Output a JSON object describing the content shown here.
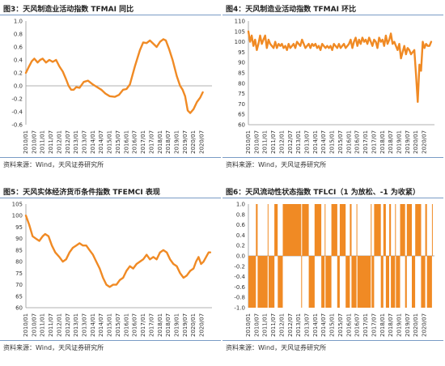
{
  "panels": [
    {
      "title": "图3：天风制造业活动指数 TFMAI 同比",
      "source": "资料来源：Wind，天风证券研究所"
    },
    {
      "title": "图4：天风制造业活动指数 TFMAI 环比",
      "source": "资料来源：Wind，天风证券研究所"
    },
    {
      "title": "图5：天风实体经济货币条件指数 TFEMCI 表现",
      "source": "资料来源：Wind，天风证券研究所"
    },
    {
      "title": "图6：天风流动性状态指数 TFLCI（1 为放松、-1 为收紧）",
      "source": "资料来源：Wind，天风证券研究所"
    }
  ],
  "colors": {
    "series": "#f08a24",
    "axis": "#999999",
    "rule": "#7a9cc6"
  },
  "chart_data": [
    {
      "type": "line",
      "x_labels": [
        "2010/01",
        "2010/07",
        "2011/01",
        "2011/07",
        "2012/01",
        "2012/07",
        "2013/01",
        "2013/07",
        "2014/01",
        "2014/07",
        "2015/01",
        "2015/07",
        "2016/01",
        "2016/07",
        "2017/01",
        "2017/07",
        "2018/01",
        "2018/07",
        "2019/01",
        "2019/07",
        "2020/01",
        "2020/07"
      ],
      "x_range": [
        2010.0,
        2021.1
      ],
      "ylim": [
        -0.6,
        1.0
      ],
      "yticks": [
        "-0.6",
        "-0.4",
        "-0.2",
        "0.0",
        "0.2",
        "0.4",
        "0.6",
        "0.8",
        "1.0"
      ],
      "points": [
        [
          2010.0,
          0.2
        ],
        [
          2010.15,
          0.28
        ],
        [
          2010.35,
          0.38
        ],
        [
          2010.5,
          0.42
        ],
        [
          2010.7,
          0.36
        ],
        [
          2010.85,
          0.4
        ],
        [
          2011.0,
          0.42
        ],
        [
          2011.2,
          0.36
        ],
        [
          2011.4,
          0.4
        ],
        [
          2011.6,
          0.37
        ],
        [
          2011.8,
          0.4
        ],
        [
          2012.0,
          0.3
        ],
        [
          2012.2,
          0.22
        ],
        [
          2012.4,
          0.1
        ],
        [
          2012.55,
          0.0
        ],
        [
          2012.7,
          -0.06
        ],
        [
          2012.85,
          -0.06
        ],
        [
          2013.0,
          -0.02
        ],
        [
          2013.2,
          -0.03
        ],
        [
          2013.45,
          0.06
        ],
        [
          2013.7,
          0.08
        ],
        [
          2014.0,
          0.02
        ],
        [
          2014.25,
          -0.02
        ],
        [
          2014.5,
          -0.06
        ],
        [
          2014.75,
          -0.12
        ],
        [
          2015.0,
          -0.16
        ],
        [
          2015.3,
          -0.17
        ],
        [
          2015.55,
          -0.14
        ],
        [
          2015.8,
          -0.06
        ],
        [
          2016.0,
          -0.05
        ],
        [
          2016.2,
          0.02
        ],
        [
          2016.5,
          0.3
        ],
        [
          2016.8,
          0.55
        ],
        [
          2017.0,
          0.67
        ],
        [
          2017.2,
          0.66
        ],
        [
          2017.4,
          0.7
        ],
        [
          2017.6,
          0.65
        ],
        [
          2017.8,
          0.6
        ],
        [
          2018.0,
          0.68
        ],
        [
          2018.2,
          0.72
        ],
        [
          2018.35,
          0.7
        ],
        [
          2018.55,
          0.56
        ],
        [
          2018.75,
          0.4
        ],
        [
          2019.0,
          0.15
        ],
        [
          2019.2,
          0.0
        ],
        [
          2019.35,
          -0.06
        ],
        [
          2019.5,
          -0.16
        ],
        [
          2019.65,
          -0.38
        ],
        [
          2019.8,
          -0.42
        ],
        [
          2020.0,
          -0.36
        ],
        [
          2020.2,
          -0.25
        ],
        [
          2020.4,
          -0.18
        ],
        [
          2020.55,
          -0.1
        ]
      ]
    },
    {
      "type": "line",
      "x_labels": [
        "2010/01",
        "2010/07",
        "2011/01",
        "2011/07",
        "2012/01",
        "2012/07",
        "2013/01",
        "2013/07",
        "2014/01",
        "2014/07",
        "2015/01",
        "2015/07",
        "2016/01",
        "2016/07",
        "2017/01",
        "2017/07",
        "2018/01",
        "2018/07",
        "2019/01",
        "2019/07",
        "2020/01",
        "2020/07"
      ],
      "x_range": [
        2010.0,
        2021.1
      ],
      "ylim": [
        60,
        110
      ],
      "yticks": [
        "60",
        "65",
        "70",
        "75",
        "80",
        "85",
        "90",
        "95",
        "100",
        "105",
        "110"
      ],
      "points": [
        [
          2010.0,
          105
        ],
        [
          2010.1,
          100
        ],
        [
          2010.2,
          103
        ],
        [
          2010.3,
          98
        ],
        [
          2010.4,
          101
        ],
        [
          2010.5,
          96
        ],
        [
          2010.6,
          99
        ],
        [
          2010.7,
          103
        ],
        [
          2010.8,
          99
        ],
        [
          2010.9,
          101
        ],
        [
          2011.0,
          103
        ],
        [
          2011.1,
          97
        ],
        [
          2011.2,
          101
        ],
        [
          2011.3,
          99
        ],
        [
          2011.4,
          98
        ],
        [
          2011.5,
          97
        ],
        [
          2011.6,
          100
        ],
        [
          2011.7,
          97
        ],
        [
          2011.8,
          99
        ],
        [
          2011.9,
          98
        ],
        [
          2012.0,
          99
        ],
        [
          2012.1,
          97
        ],
        [
          2012.2,
          98
        ],
        [
          2012.3,
          96
        ],
        [
          2012.4,
          99
        ],
        [
          2012.5,
          97
        ],
        [
          2012.6,
          98
        ],
        [
          2012.7,
          99
        ],
        [
          2012.8,
          97
        ],
        [
          2012.9,
          100
        ],
        [
          2013.0,
          99
        ],
        [
          2013.1,
          98
        ],
        [
          2013.2,
          101
        ],
        [
          2013.3,
          99
        ],
        [
          2013.4,
          97
        ],
        [
          2013.5,
          98
        ],
        [
          2013.6,
          99
        ],
        [
          2013.7,
          97
        ],
        [
          2013.8,
          99
        ],
        [
          2013.9,
          98
        ],
        [
          2014.0,
          99
        ],
        [
          2014.1,
          97
        ],
        [
          2014.2,
          98
        ],
        [
          2014.3,
          96
        ],
        [
          2014.4,
          99
        ],
        [
          2014.5,
          98
        ],
        [
          2014.6,
          97
        ],
        [
          2014.7,
          98
        ],
        [
          2014.8,
          97
        ],
        [
          2014.9,
          98
        ],
        [
          2015.0,
          96
        ],
        [
          2015.1,
          99
        ],
        [
          2015.2,
          98
        ],
        [
          2015.3,
          97
        ],
        [
          2015.4,
          99
        ],
        [
          2015.5,
          97
        ],
        [
          2015.6,
          98
        ],
        [
          2015.7,
          99
        ],
        [
          2015.8,
          97
        ],
        [
          2015.9,
          98
        ],
        [
          2016.0,
          99
        ],
        [
          2016.1,
          101
        ],
        [
          2016.2,
          97
        ],
        [
          2016.3,
          100
        ],
        [
          2016.4,
          102
        ],
        [
          2016.5,
          98
        ],
        [
          2016.6,
          101
        ],
        [
          2016.7,
          99
        ],
        [
          2016.8,
          102
        ],
        [
          2016.9,
          100
        ],
        [
          2017.0,
          101
        ],
        [
          2017.1,
          99
        ],
        [
          2017.2,
          102
        ],
        [
          2017.3,
          100
        ],
        [
          2017.4,
          98
        ],
        [
          2017.5,
          101
        ],
        [
          2017.6,
          100
        ],
        [
          2017.7,
          97
        ],
        [
          2017.8,
          102
        ],
        [
          2017.9,
          100
        ],
        [
          2018.0,
          101
        ],
        [
          2018.1,
          98
        ],
        [
          2018.2,
          103
        ],
        [
          2018.3,
          99
        ],
        [
          2018.4,
          101
        ],
        [
          2018.5,
          104
        ],
        [
          2018.6,
          99
        ],
        [
          2018.7,
          100
        ],
        [
          2018.8,
          98
        ],
        [
          2018.9,
          96
        ],
        [
          2019.0,
          99
        ],
        [
          2019.1,
          92
        ],
        [
          2019.2,
          95
        ],
        [
          2019.3,
          98
        ],
        [
          2019.4,
          94
        ],
        [
          2019.5,
          97
        ],
        [
          2019.6,
          96
        ],
        [
          2019.7,
          94
        ],
        [
          2019.8,
          95
        ],
        [
          2019.9,
          96
        ],
        [
          2020.0,
          84
        ],
        [
          2020.1,
          71
        ],
        [
          2020.2,
          89
        ],
        [
          2020.3,
          86
        ],
        [
          2020.4,
          100
        ],
        [
          2020.5,
          97
        ],
        [
          2020.6,
          99
        ],
        [
          2020.7,
          98
        ],
        [
          2020.8,
          98
        ],
        [
          2020.9,
          100
        ]
      ]
    },
    {
      "type": "line",
      "x_labels": [
        "2010/01",
        "2010/07",
        "2011/01",
        "2011/07",
        "2012/01",
        "2012/07",
        "2013/01",
        "2013/07",
        "2014/01",
        "2014/07",
        "2015/01",
        "2015/07",
        "2016/01",
        "2016/07",
        "2017/01",
        "2017/07",
        "2018/01",
        "2018/07",
        "2019/01",
        "2019/07",
        "2020/01",
        "2020/07"
      ],
      "x_range": [
        2010.0,
        2021.1
      ],
      "ylim": [
        60,
        105
      ],
      "yticks": [
        "60",
        "65",
        "70",
        "75",
        "80",
        "85",
        "90",
        "95",
        "100",
        "105"
      ],
      "points": [
        [
          2010.0,
          100
        ],
        [
          2010.2,
          96
        ],
        [
          2010.4,
          91
        ],
        [
          2010.6,
          90
        ],
        [
          2010.8,
          89
        ],
        [
          2011.0,
          91
        ],
        [
          2011.15,
          92
        ],
        [
          2011.35,
          91
        ],
        [
          2011.55,
          87
        ],
        [
          2011.75,
          84
        ],
        [
          2012.0,
          82
        ],
        [
          2012.2,
          80
        ],
        [
          2012.4,
          81
        ],
        [
          2012.6,
          84
        ],
        [
          2012.8,
          86
        ],
        [
          2013.0,
          87
        ],
        [
          2013.2,
          88
        ],
        [
          2013.4,
          87
        ],
        [
          2013.6,
          87
        ],
        [
          2013.8,
          85
        ],
        [
          2014.0,
          83
        ],
        [
          2014.2,
          80
        ],
        [
          2014.4,
          77
        ],
        [
          2014.6,
          73
        ],
        [
          2014.8,
          70
        ],
        [
          2015.0,
          69
        ],
        [
          2015.2,
          70
        ],
        [
          2015.4,
          70
        ],
        [
          2015.6,
          72
        ],
        [
          2015.8,
          73
        ],
        [
          2016.0,
          76
        ],
        [
          2016.2,
          78
        ],
        [
          2016.4,
          77
        ],
        [
          2016.6,
          79
        ],
        [
          2016.8,
          80
        ],
        [
          2017.0,
          81
        ],
        [
          2017.2,
          83
        ],
        [
          2017.4,
          81
        ],
        [
          2017.6,
          82
        ],
        [
          2017.8,
          81
        ],
        [
          2018.0,
          84
        ],
        [
          2018.2,
          85
        ],
        [
          2018.4,
          84
        ],
        [
          2018.6,
          81
        ],
        [
          2018.8,
          79
        ],
        [
          2019.0,
          78
        ],
        [
          2019.2,
          75
        ],
        [
          2019.4,
          73
        ],
        [
          2019.6,
          74
        ],
        [
          2019.8,
          76
        ],
        [
          2020.0,
          77
        ],
        [
          2020.15,
          80
        ],
        [
          2020.3,
          82
        ],
        [
          2020.45,
          79
        ],
        [
          2020.6,
          80
        ],
        [
          2020.75,
          82
        ],
        [
          2020.9,
          84
        ],
        [
          2021.0,
          84
        ]
      ]
    },
    {
      "type": "bar",
      "x_labels": [
        "2010/01",
        "2010/07",
        "2011/01",
        "2011/07",
        "2012/01",
        "2012/07",
        "2013/01",
        "2013/07",
        "2014/01",
        "2014/07",
        "2015/01",
        "2015/07",
        "2016/01",
        "2016/07",
        "2017/01",
        "2017/07",
        "2018/01",
        "2018/07",
        "2019/01",
        "2019/07",
        "2020/01",
        "2020/07"
      ],
      "x_range": [
        2010.0,
        2021.1
      ],
      "ylim": [
        -1.0,
        1.0
      ],
      "yticks": [
        "-1.0",
        "-0.8",
        "-0.6",
        "-0.4",
        "-0.2",
        "0.0",
        "0.2",
        "0.4",
        "0.6",
        "0.8",
        "1.0"
      ],
      "bars": [
        [
          2010.0,
          2010.45,
          -1
        ],
        [
          2010.45,
          2010.55,
          1
        ],
        [
          2010.55,
          2011.15,
          -1
        ],
        [
          2011.15,
          2011.2,
          1
        ],
        [
          2011.2,
          2011.55,
          -1
        ],
        [
          2011.55,
          2011.75,
          1
        ],
        [
          2011.75,
          2012.05,
          -1
        ],
        [
          2012.05,
          2013.15,
          1
        ],
        [
          2013.15,
          2013.2,
          -1
        ],
        [
          2013.2,
          2013.6,
          1
        ],
        [
          2013.6,
          2013.95,
          -1
        ],
        [
          2013.95,
          2014.35,
          1
        ],
        [
          2014.35,
          2014.55,
          -1
        ],
        [
          2014.55,
          2014.6,
          1
        ],
        [
          2014.6,
          2014.95,
          -1
        ],
        [
          2014.95,
          2015.3,
          1
        ],
        [
          2015.3,
          2015.45,
          -1
        ],
        [
          2015.45,
          2015.8,
          1
        ],
        [
          2015.8,
          2016.05,
          -1
        ],
        [
          2016.05,
          2016.15,
          1
        ],
        [
          2016.15,
          2016.45,
          -1
        ],
        [
          2016.45,
          2016.5,
          1
        ],
        [
          2016.5,
          2017.3,
          -1
        ],
        [
          2017.3,
          2017.35,
          1
        ],
        [
          2017.35,
          2017.5,
          -1
        ],
        [
          2017.5,
          2017.9,
          1
        ],
        [
          2017.9,
          2018.05,
          -1
        ],
        [
          2018.05,
          2018.2,
          1
        ],
        [
          2018.2,
          2018.4,
          -1
        ],
        [
          2018.4,
          2018.5,
          1
        ],
        [
          2018.5,
          2018.75,
          -1
        ],
        [
          2018.75,
          2018.8,
          1
        ],
        [
          2018.8,
          2019.05,
          -1
        ],
        [
          2019.05,
          2019.35,
          1
        ],
        [
          2019.35,
          2019.45,
          -1
        ],
        [
          2019.45,
          2019.75,
          1
        ],
        [
          2019.75,
          2019.95,
          -1
        ],
        [
          2019.95,
          2020.3,
          1
        ],
        [
          2020.3,
          2020.55,
          -1
        ],
        [
          2020.55,
          2020.65,
          1
        ],
        [
          2020.65,
          2020.95,
          -1
        ],
        [
          2020.95,
          2021.0,
          1
        ]
      ]
    }
  ]
}
